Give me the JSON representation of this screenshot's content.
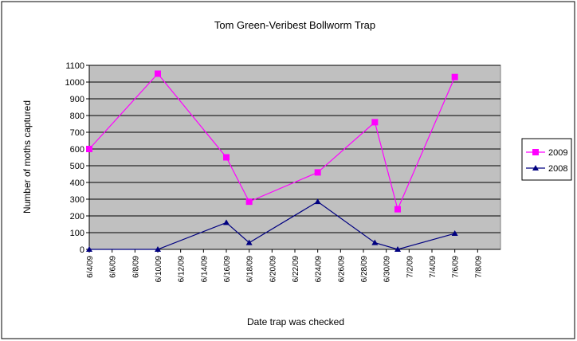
{
  "chart_data": {
    "type": "line",
    "title": "Tom Green-Veribest Bollworm Trap",
    "xlabel": "Date trap was checked",
    "ylabel": "Number of moths captured",
    "x": [
      "6/4/09",
      "6/10/09",
      "6/16/09",
      "6/18/09",
      "6/24/09",
      "6/29/09",
      "7/1/09",
      "7/6/09"
    ],
    "series": [
      {
        "name": "2009",
        "color": "#ff00ff",
        "marker": "square",
        "values": [
          600,
          1050,
          550,
          285,
          460,
          760,
          240,
          1030
        ]
      },
      {
        "name": "2008",
        "color": "#000080",
        "marker": "triangle",
        "values": [
          0,
          0,
          160,
          40,
          285,
          40,
          0,
          95
        ]
      }
    ],
    "xlim": [
      "6/4/09",
      "7/10/09"
    ],
    "xticks": [
      "6/4/09",
      "6/6/09",
      "6/8/09",
      "6/10/09",
      "6/12/09",
      "6/14/09",
      "6/16/09",
      "6/18/09",
      "6/20/09",
      "6/22/09",
      "6/24/09",
      "6/26/09",
      "6/28/09",
      "6/30/09",
      "7/2/09",
      "7/4/09",
      "7/6/09",
      "7/8/09"
    ],
    "ylim": [
      0,
      1100
    ],
    "yticks": [
      0,
      100,
      200,
      300,
      400,
      500,
      600,
      700,
      800,
      900,
      1000,
      1100
    ],
    "grid": true,
    "legend": "right"
  }
}
